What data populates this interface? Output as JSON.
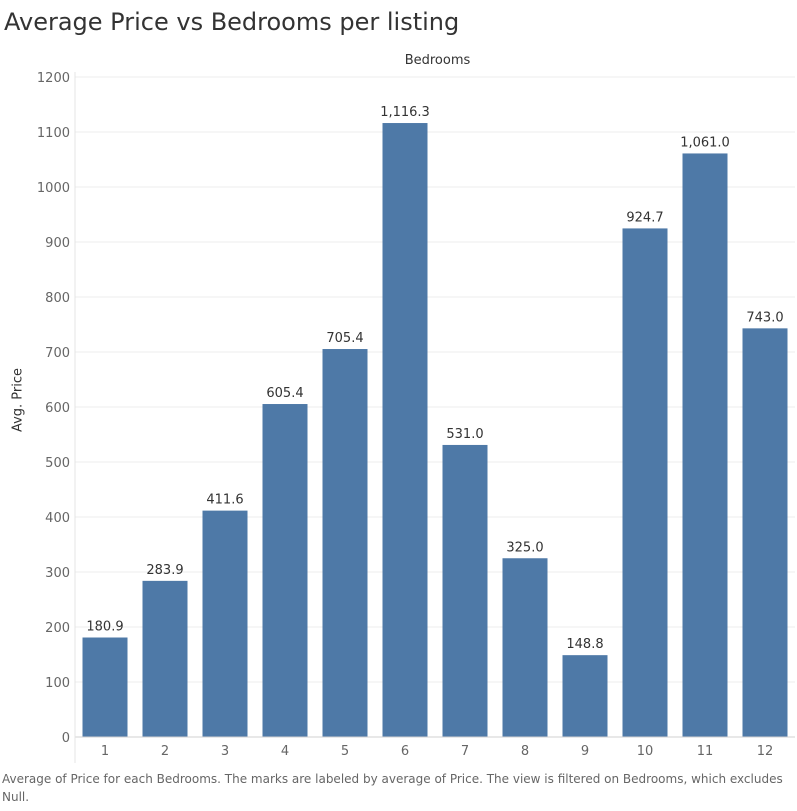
{
  "title": "Average Price vs Bedrooms per listing",
  "caption": "Average of Price for each Bedrooms.  The marks are labeled by average of Price. The view is filtered on Bedrooms, which excludes Null.",
  "colors": {
    "bar": "#4e79a7",
    "grid": "#ececec",
    "axis_text": "#666666",
    "label_text": "#333333"
  },
  "chart_data": {
    "type": "bar",
    "title": "Average Price vs Bedrooms per listing",
    "xlabel": "Bedrooms",
    "ylabel": "Avg. Price",
    "categories": [
      "1",
      "2",
      "3",
      "4",
      "5",
      "6",
      "7",
      "8",
      "9",
      "10",
      "11",
      "12"
    ],
    "values": [
      180.9,
      283.9,
      411.6,
      605.4,
      705.4,
      1116.3,
      531.0,
      325.0,
      148.8,
      924.7,
      1061.0,
      743.0
    ],
    "labels": [
      "180.9",
      "283.9",
      "411.6",
      "605.4",
      "705.4",
      "1,116.3",
      "531.0",
      "325.0",
      "148.8",
      "924.7",
      "1,061.0",
      "743.0"
    ],
    "ylim": [
      0,
      1200
    ],
    "yticks": [
      0,
      100,
      200,
      300,
      400,
      500,
      600,
      700,
      800,
      900,
      1000,
      1100,
      1200
    ],
    "grid": true,
    "legend": "none"
  }
}
